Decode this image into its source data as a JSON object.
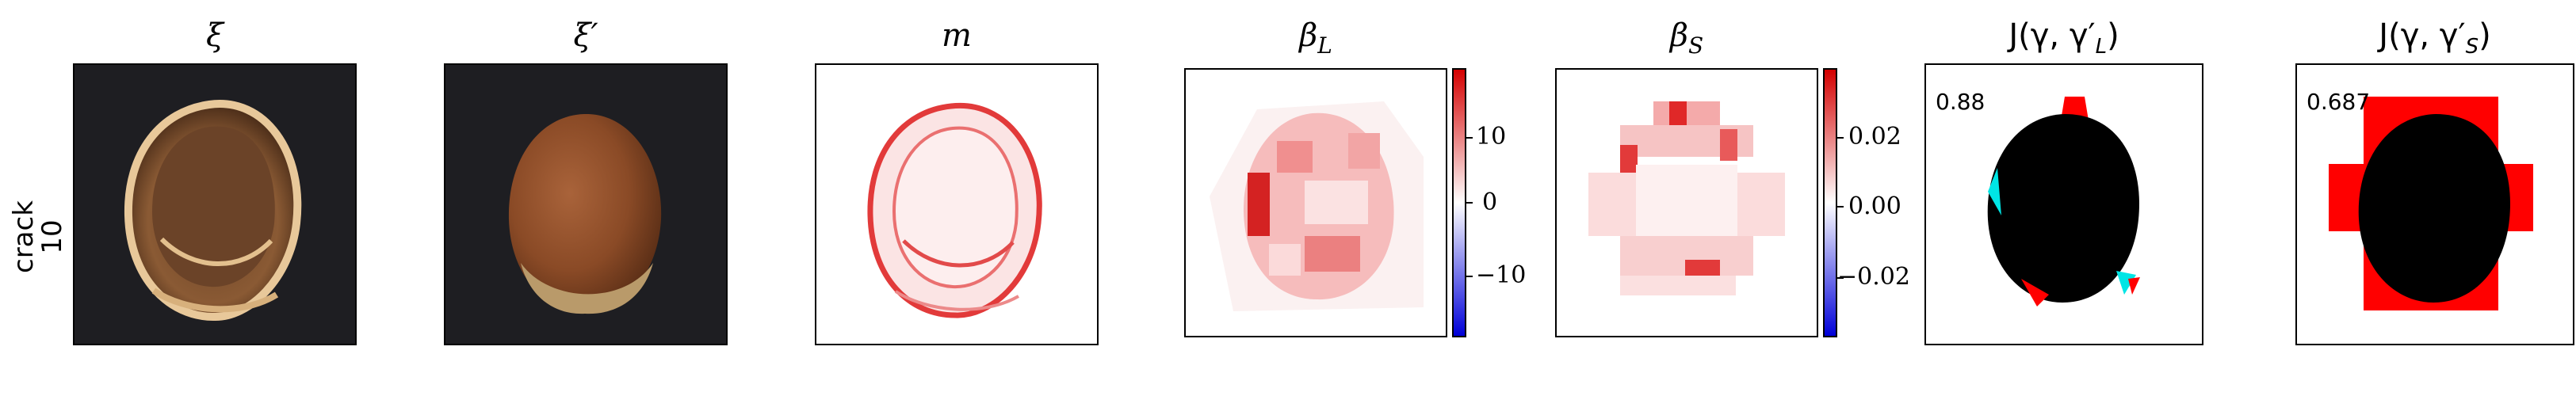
{
  "row_label": {
    "line1": "crack",
    "line2": "10"
  },
  "titles": {
    "xi": "ξ",
    "xi_prime": "ξ′",
    "m": "m",
    "beta_l": "β",
    "beta_l_sub": "L",
    "beta_s": "β",
    "beta_s_sub": "S",
    "j_l": "J(γ, γ′",
    "j_l_sub": "L",
    "j_s": "J(γ, γ′",
    "j_s_sub": "S",
    "close_paren": ")"
  },
  "colorbar_l": {
    "ticks": [
      "10",
      "0",
      "−10"
    ]
  },
  "colorbar_s": {
    "ticks": [
      "0.02",
      "0.00",
      "−0.02"
    ]
  },
  "scores": {
    "j_l": "0.88",
    "j_s": "0.687"
  },
  "colors": {
    "positive": "#d40000",
    "negative": "#0000d8",
    "mask_red": "#ff0000",
    "mask_cyan": "#00e5e5",
    "panel_dark": "#1e1e22"
  }
}
